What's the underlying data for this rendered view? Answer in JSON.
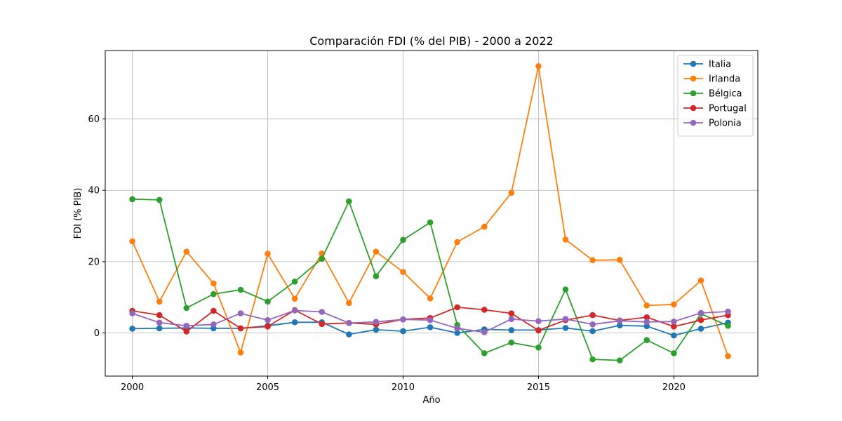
{
  "chart_data": {
    "type": "line",
    "title": "Comparación FDI (% del PIB) - 2000 a 2022",
    "xlabel": "Año",
    "ylabel": "FDI (% PIB)",
    "grid": true,
    "legend_position": "top-right",
    "xlim": [
      1999,
      2023.1
    ],
    "ylim": [
      -12.1,
      79.2
    ],
    "xticks": [
      2000,
      2005,
      2010,
      2015,
      2020
    ],
    "yticks": [
      0,
      20,
      40,
      60
    ],
    "x": [
      2000,
      2001,
      2002,
      2003,
      2004,
      2005,
      2006,
      2007,
      2008,
      2009,
      2010,
      2011,
      2012,
      2013,
      2014,
      2015,
      2016,
      2017,
      2018,
      2019,
      2020,
      2021,
      2022
    ],
    "series": [
      {
        "name": "Italia",
        "color": "#1f77b4",
        "values": [
          1.2,
          1.3,
          1.4,
          1.3,
          1.3,
          2.0,
          3.0,
          3.0,
          -0.4,
          0.9,
          0.5,
          1.6,
          0.0,
          1.0,
          0.8,
          0.8,
          1.4,
          0.5,
          2.1,
          1.9,
          -0.7,
          1.2,
          2.9
        ]
      },
      {
        "name": "Irlanda",
        "color": "#ff7f0e",
        "values": [
          25.7,
          8.8,
          22.8,
          13.9,
          -5.5,
          22.2,
          9.6,
          22.3,
          8.4,
          22.8,
          17.1,
          9.7,
          25.5,
          29.8,
          39.3,
          74.8,
          26.2,
          20.4,
          20.5,
          7.7,
          8.0,
          14.7,
          -6.5
        ]
      },
      {
        "name": "Bélgica",
        "color": "#2ca02c",
        "values": [
          37.5,
          37.3,
          7.0,
          10.9,
          12.1,
          8.8,
          14.4,
          20.8,
          36.9,
          15.9,
          26.1,
          31.0,
          2.2,
          -5.7,
          -2.7,
          -4.1,
          12.2,
          -7.4,
          -7.7,
          -2.0,
          -5.7,
          5.4,
          2.0
        ]
      },
      {
        "name": "Portugal",
        "color": "#d62728",
        "values": [
          6.2,
          5.0,
          0.4,
          6.2,
          1.3,
          1.8,
          6.4,
          2.5,
          2.8,
          2.4,
          3.8,
          4.2,
          7.2,
          6.5,
          5.5,
          0.7,
          3.6,
          5.0,
          3.5,
          4.4,
          1.8,
          3.6,
          5.0
        ]
      },
      {
        "name": "Polonia",
        "color": "#9467bd",
        "values": [
          5.5,
          2.9,
          2.0,
          2.4,
          5.5,
          3.6,
          6.3,
          5.9,
          2.8,
          3.1,
          3.8,
          3.6,
          1.3,
          0.2,
          3.9,
          3.3,
          3.9,
          2.4,
          3.4,
          3.1,
          3.2,
          5.6,
          6.0
        ]
      }
    ]
  }
}
